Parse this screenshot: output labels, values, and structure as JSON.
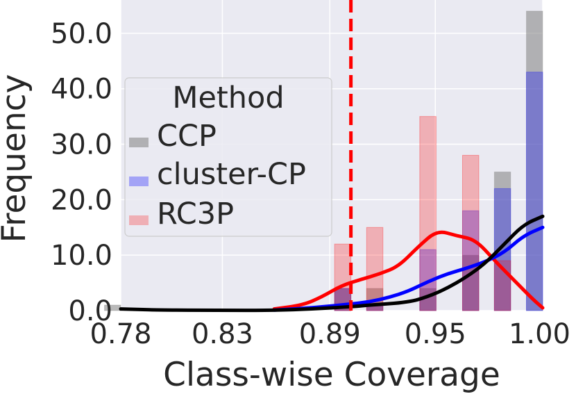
{
  "chart_data": {
    "type": "bar",
    "xlabel": "Class-wise Coverage",
    "ylabel": "Frequency",
    "xlim": [
      0.78,
      1.0
    ],
    "ylim": [
      0,
      56
    ],
    "x_ticks": [
      0.78,
      0.833,
      0.889,
      0.944,
      1.0
    ],
    "x_tick_labels": [
      "0.78",
      "0.83",
      "0.89",
      "0.95",
      "1.00"
    ],
    "y_ticks": [
      0,
      10,
      20,
      30,
      40,
      50
    ],
    "y_tick_labels": [
      "0.0",
      "10.0",
      "20.0",
      "30.0",
      "40.0",
      "50.0"
    ],
    "grid": true,
    "legend": {
      "title": "Method",
      "placement": "center-left"
    },
    "threshold_line": {
      "x": 0.9,
      "color": "#ff0000",
      "style": "dashed"
    },
    "series": [
      {
        "name": "CCP",
        "color": "#808080",
        "bars": [
          {
            "x": 0.78,
            "width": 0.0085,
            "value": 1
          },
          {
            "x": 0.9,
            "value": 4
          },
          {
            "x": 0.9167,
            "value": 4
          },
          {
            "x": 0.9444,
            "value": 4
          },
          {
            "x": 0.9667,
            "value": 10
          },
          {
            "x": 0.9833,
            "value": 25
          },
          {
            "x": 1.0,
            "value": 54
          }
        ],
        "kde": [
          [
            0.78,
            0.3
          ],
          [
            0.79,
            0.2
          ],
          [
            0.8,
            0.1
          ],
          [
            0.83,
            0.05
          ],
          [
            0.86,
            0.05
          ],
          [
            0.88,
            0.3
          ],
          [
            0.9,
            0.7
          ],
          [
            0.91,
            1.0
          ],
          [
            0.93,
            1.5
          ],
          [
            0.94,
            2.5
          ],
          [
            0.95,
            4.0
          ],
          [
            0.96,
            6.0
          ],
          [
            0.97,
            8.5
          ],
          [
            0.98,
            12.0
          ],
          [
            0.99,
            15.5
          ],
          [
            1.0,
            17.0
          ]
        ]
      },
      {
        "name": "cluster-CP",
        "color": "#0000ff",
        "bars": [
          {
            "x": 0.9,
            "value": 4
          },
          {
            "x": 0.9167,
            "value": 1
          },
          {
            "x": 0.9444,
            "value": 11
          },
          {
            "x": 0.9667,
            "value": 18
          },
          {
            "x": 0.9833,
            "value": 22
          },
          {
            "x": 1.0,
            "value": 43
          }
        ],
        "kde": [
          [
            0.86,
            0.1
          ],
          [
            0.88,
            0.5
          ],
          [
            0.9,
            1.2
          ],
          [
            0.91,
            1.6
          ],
          [
            0.92,
            2.4
          ],
          [
            0.93,
            3.5
          ],
          [
            0.94,
            5.2
          ],
          [
            0.95,
            6.6
          ],
          [
            0.96,
            7.6
          ],
          [
            0.97,
            8.8
          ],
          [
            0.98,
            10.5
          ],
          [
            0.99,
            13.5
          ],
          [
            1.0,
            15.0
          ]
        ]
      },
      {
        "name": "RC3P",
        "color": "#ff0000",
        "bars": [
          {
            "x": 0.9,
            "value": 12
          },
          {
            "x": 0.9167,
            "value": 15
          },
          {
            "x": 0.9444,
            "value": 35
          },
          {
            "x": 0.9667,
            "value": 28
          },
          {
            "x": 0.9833,
            "value": 9
          }
        ],
        "kde": [
          [
            0.86,
            0.3
          ],
          [
            0.875,
            1.0
          ],
          [
            0.885,
            2.5
          ],
          [
            0.895,
            4.5
          ],
          [
            0.905,
            5.6
          ],
          [
            0.915,
            6.6
          ],
          [
            0.925,
            8.0
          ],
          [
            0.935,
            11.5
          ],
          [
            0.945,
            14.5
          ],
          [
            0.955,
            13.5
          ],
          [
            0.965,
            12.8
          ],
          [
            0.975,
            9.0
          ],
          [
            0.985,
            5.5
          ],
          [
            0.995,
            2.0
          ],
          [
            1.0,
            0.5
          ]
        ]
      }
    ]
  }
}
